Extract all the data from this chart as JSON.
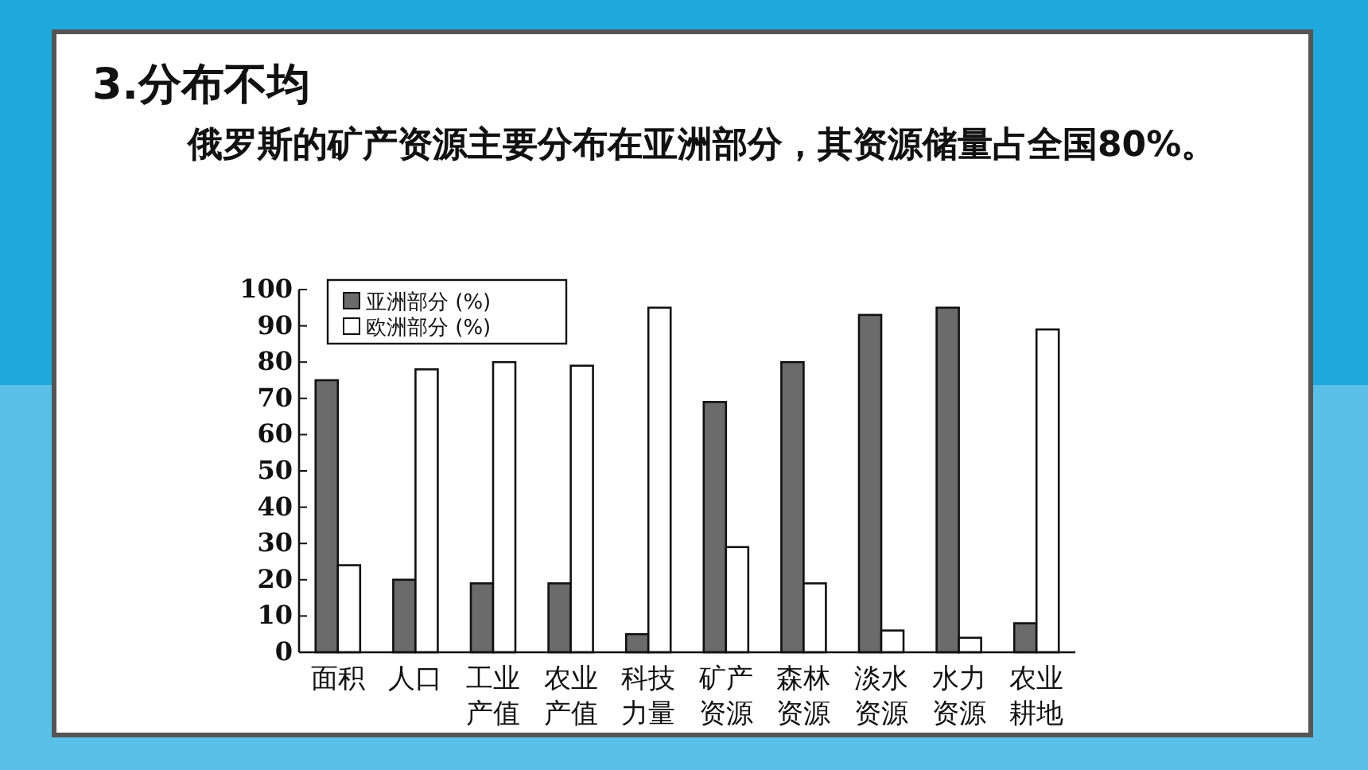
{
  "chart_data": {
    "type": "bar",
    "title": "3.分布不均",
    "subtitle": "俄罗斯的矿产资源主要分布在亚洲部分，其资源储量占全国80%。",
    "categories": [
      "面积",
      "人口",
      "工业产值",
      "农业产值",
      "科技力量",
      "矿产资源",
      "森林资源",
      "淡水资源",
      "水力资源",
      "农业耕地"
    ],
    "series": [
      {
        "name": "亚洲部分 (%)",
        "color": "#6b6b6b",
        "values": [
          75,
          20,
          19,
          19,
          5,
          69,
          80,
          93,
          95,
          8
        ]
      },
      {
        "name": "欧洲部分 (%)",
        "color": "#ffffff",
        "values": [
          24,
          78,
          80,
          79,
          95,
          29,
          19,
          6,
          4,
          89
        ]
      }
    ],
    "ylim": [
      0,
      100
    ],
    "yticks": [
      0,
      10,
      20,
      30,
      40,
      50,
      60,
      70,
      80,
      90,
      100
    ],
    "grid": false,
    "legend": "top left"
  }
}
